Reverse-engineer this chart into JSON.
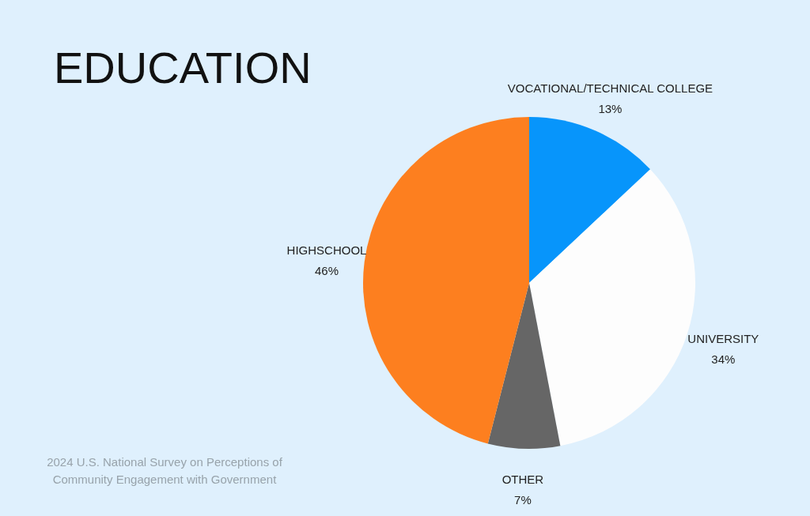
{
  "chart_data": {
    "type": "pie",
    "title": "EDUCATION",
    "categories": [
      "VOCATIONAL/TECHNICAL COLLEGE",
      "UNIVERSITY",
      "OTHER",
      "HIGHSCHOOL"
    ],
    "values": [
      13,
      34,
      7,
      46
    ],
    "colors": [
      "#0795fb",
      "#fdfdfd",
      "#666666",
      "#fd7f1f"
    ],
    "value_labels": [
      "13%",
      "34%",
      "7%",
      "46%"
    ],
    "annotations": [
      "2024 U.S. National Survey on Perceptions of Community Engagement with Government"
    ]
  }
}
